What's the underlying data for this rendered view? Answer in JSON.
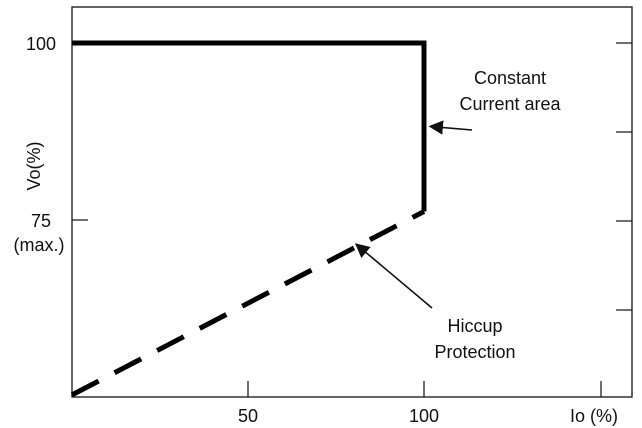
{
  "chart_data": {
    "type": "line",
    "xlabel": "Io (%)",
    "ylabel": "Vo(%)",
    "x_ticks": [
      {
        "value": 50,
        "label": "50"
      },
      {
        "value": 100,
        "label": "100"
      }
    ],
    "y_ticks": [
      {
        "value": 100,
        "label": "100",
        "sublabel": ""
      },
      {
        "value": 75,
        "label": "75",
        "sublabel": "(max.)"
      }
    ],
    "xlim": [
      0,
      150
    ],
    "ylim": [
      50,
      105
    ],
    "series": [
      {
        "style": "solid",
        "points": [
          [
            0,
            100
          ],
          [
            100,
            100
          ],
          [
            100,
            76.2
          ]
        ]
      },
      {
        "style": "dashed",
        "points": [
          [
            0,
            50.3
          ],
          [
            100,
            76.2
          ]
        ]
      }
    ],
    "annotations": [
      {
        "lines": [
          "Constant",
          "Current area"
        ],
        "target": [
          100,
          88.5
        ]
      },
      {
        "lines": [
          "Hiccup",
          "Protection"
        ],
        "target": [
          79,
          71.3
        ]
      }
    ],
    "grid": false
  }
}
